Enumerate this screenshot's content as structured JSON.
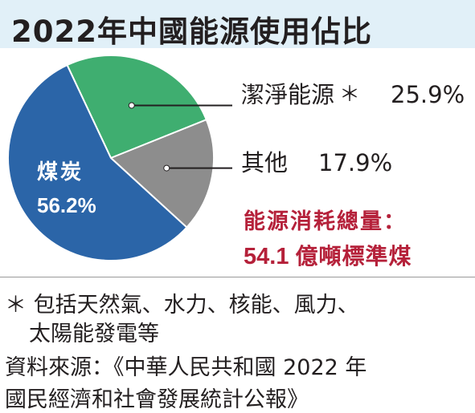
{
  "chart_data": {
    "type": "pie",
    "title": "2022年中國能源使用佔比",
    "slices": [
      {
        "label": "潔淨能源",
        "marker": "＊",
        "value": 25.9,
        "value_label": "25.9%",
        "color": "#3fae70"
      },
      {
        "label": "其他",
        "value": 17.9,
        "value_label": "17.9%",
        "color": "#8d8d8d"
      },
      {
        "label": "煤炭",
        "value": 56.2,
        "value_label": "56.2%",
        "color": "#2b65a8"
      }
    ],
    "total_label": "能源消耗總量：",
    "total_value": "54.1",
    "total_unit": "億噸標準煤"
  },
  "footnote": {
    "line1": "＊ 包括天然氣、水力、核能、風力、",
    "line2": "太陽能發電等"
  },
  "source": {
    "line1": "資料來源：《中華人民共和國 2022 年",
    "line2": "國民經濟和社會發展統計公報》"
  }
}
